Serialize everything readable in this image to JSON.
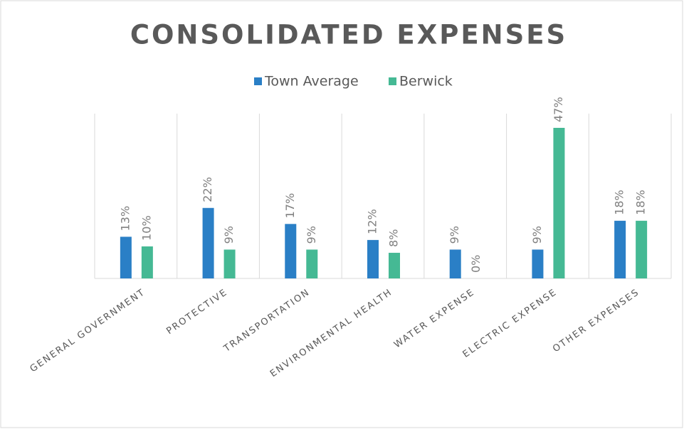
{
  "chart_data": {
    "type": "bar",
    "title": "CONSOLIDATED EXPENSES",
    "categories": [
      "GENERAL GOVERNMENT",
      "PROTECTIVE",
      "TRANSPORTATION",
      "ENVIRONMENTAL HEALTH",
      "WATER EXPENSE",
      "ELECTRIC EXPENSE",
      "OTHER EXPENSES"
    ],
    "series": [
      {
        "name": "Town Average",
        "color": "#2a7fc6",
        "values": [
          13,
          22,
          17,
          12,
          9,
          9,
          18
        ],
        "value_labels": [
          "13%",
          "22%",
          "17%",
          "12%",
          "9%",
          "9%",
          "18%"
        ]
      },
      {
        "name": "Berwick",
        "color": "#45b994",
        "values": [
          10,
          9,
          9,
          8,
          0,
          47,
          18
        ],
        "value_labels": [
          "10%",
          "9%",
          "9%",
          "8%",
          "0%",
          "47%",
          "18%"
        ]
      }
    ],
    "legend": "top"
  }
}
